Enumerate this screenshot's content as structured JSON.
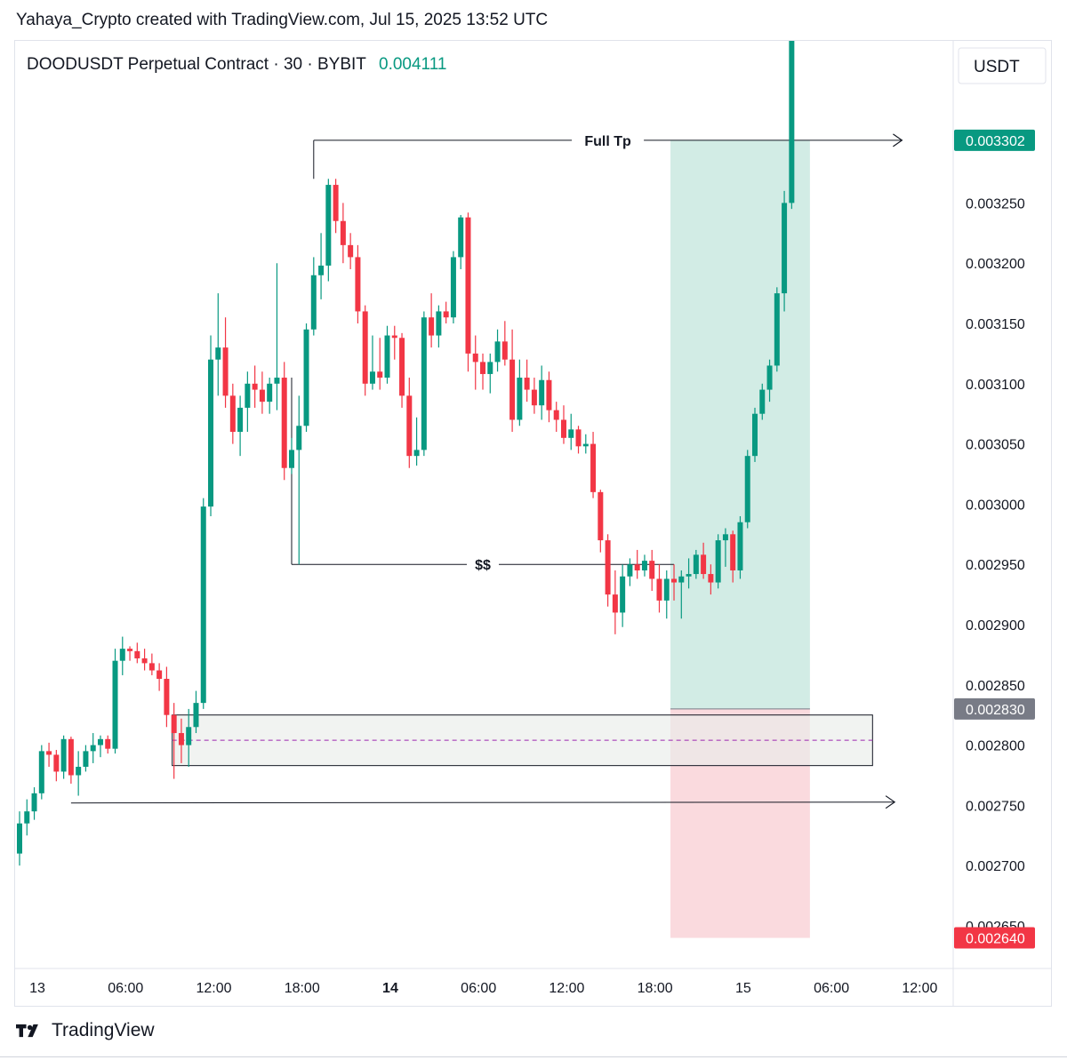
{
  "header": {
    "attribution": "Yahaya_Crypto created with TradingView.com, Jul 15, 2025 13:52 UTC"
  },
  "legend": {
    "symbol": "DOODUSDT Perpetual Contract · 30 · BYBIT",
    "last_price": "0.004111"
  },
  "axis": {
    "currency": "USDT"
  },
  "colors": {
    "up": "#089981",
    "down": "#f23645",
    "target_zone": "#cdeae2",
    "stop_zone": "#f9d6da",
    "range_box": "#e9ecea",
    "label_green": "#089981",
    "label_red": "#f23645",
    "label_gray": "#787b86"
  },
  "price_labels": {
    "target": "0.003302",
    "entry": "0.002830",
    "stop": "0.002640"
  },
  "footer": {
    "brand": "TradingView"
  },
  "chart_data": {
    "type": "candlestick",
    "x_unit": "30-minute bars from Jul 13 00:00",
    "ylim": [
      0.00262,
      0.00339
    ],
    "y_ticks": [
      "0.003250",
      "0.003200",
      "0.003150",
      "0.003100",
      "0.003050",
      "0.003000",
      "0.002950",
      "0.002900",
      "0.002850",
      "0.002800",
      "0.002750",
      "0.002700",
      "0.002650"
    ],
    "x_ticks": [
      {
        "label": "13",
        "bar": 0,
        "bold": false
      },
      {
        "label": "06:00",
        "bar": 12,
        "bold": false
      },
      {
        "label": "12:00",
        "bar": 24,
        "bold": false
      },
      {
        "label": "18:00",
        "bar": 36,
        "bold": false
      },
      {
        "label": "14",
        "bar": 48,
        "bold": true
      },
      {
        "label": "06:00",
        "bar": 60,
        "bold": false
      },
      {
        "label": "12:00",
        "bar": 72,
        "bold": false
      },
      {
        "label": "18:00",
        "bar": 84,
        "bold": false
      },
      {
        "label": "15",
        "bar": 96,
        "bold": false
      },
      {
        "label": "06:00",
        "bar": 108,
        "bold": false
      },
      {
        "label": "12:00",
        "bar": 120,
        "bold": false
      }
    ],
    "candles": [
      [
        0.00271,
        0.002745,
        0.0027,
        0.002735
      ],
      [
        0.002735,
        0.002755,
        0.002725,
        0.002745
      ],
      [
        0.002745,
        0.002765,
        0.002738,
        0.00276
      ],
      [
        0.00276,
        0.0028,
        0.002755,
        0.002795
      ],
      [
        0.002795,
        0.002802,
        0.002782,
        0.002792
      ],
      [
        0.002792,
        0.002796,
        0.00277,
        0.002778
      ],
      [
        0.002778,
        0.002808,
        0.002772,
        0.002805
      ],
      [
        0.002805,
        0.002807,
        0.002768,
        0.002775
      ],
      [
        0.002775,
        0.002795,
        0.002758,
        0.002782
      ],
      [
        0.002782,
        0.0028,
        0.002778,
        0.002795
      ],
      [
        0.002795,
        0.00281,
        0.002785,
        0.0028
      ],
      [
        0.0028,
        0.002808,
        0.00279,
        0.002805
      ],
      [
        0.002805,
        0.002808,
        0.002793,
        0.002797
      ],
      [
        0.002797,
        0.00288,
        0.002793,
        0.00287
      ],
      [
        0.00287,
        0.00289,
        0.002858,
        0.00288
      ],
      [
        0.00288,
        0.002882,
        0.00287,
        0.002878
      ],
      [
        0.002878,
        0.002885,
        0.002868,
        0.002872
      ],
      [
        0.002872,
        0.00288,
        0.002862,
        0.002868
      ],
      [
        0.002868,
        0.002876,
        0.002858,
        0.002862
      ],
      [
        0.002862,
        0.002868,
        0.002845,
        0.002855
      ],
      [
        0.002855,
        0.002865,
        0.002815,
        0.002825
      ],
      [
        0.002825,
        0.002835,
        0.002772,
        0.00281
      ],
      [
        0.00281,
        0.002822,
        0.002785,
        0.0028
      ],
      [
        0.0028,
        0.00283,
        0.002782,
        0.002815
      ],
      [
        0.002815,
        0.002845,
        0.00281,
        0.002835
      ],
      [
        0.002835,
        0.003005,
        0.00283,
        0.002998
      ],
      [
        0.002998,
        0.00314,
        0.00299,
        0.00312
      ],
      [
        0.00312,
        0.003175,
        0.00309,
        0.00313
      ],
      [
        0.00313,
        0.003155,
        0.00308,
        0.00309
      ],
      [
        0.00309,
        0.0031,
        0.00305,
        0.00306
      ],
      [
        0.00306,
        0.00309,
        0.00304,
        0.00308
      ],
      [
        0.00308,
        0.00311,
        0.00306,
        0.0031
      ],
      [
        0.0031,
        0.003115,
        0.00308,
        0.003095
      ],
      [
        0.003095,
        0.00311,
        0.003075,
        0.003085
      ],
      [
        0.003085,
        0.003105,
        0.003075,
        0.0031
      ],
      [
        0.0031,
        0.0032,
        0.003078,
        0.003105
      ],
      [
        0.003105,
        0.003118,
        0.00302,
        0.00303
      ],
      [
        0.00303,
        0.003055,
        0.003025,
        0.003045
      ],
      [
        0.003045,
        0.00309,
        0.00295,
        0.003065
      ],
      [
        0.003065,
        0.00315,
        0.00306,
        0.003145
      ],
      [
        0.003145,
        0.003205,
        0.00314,
        0.00319
      ],
      [
        0.00319,
        0.003225,
        0.00317,
        0.003198
      ],
      [
        0.003198,
        0.00327,
        0.003185,
        0.003265
      ],
      [
        0.003265,
        0.00327,
        0.003225,
        0.003235
      ],
      [
        0.003235,
        0.00325,
        0.0032,
        0.003215
      ],
      [
        0.003215,
        0.003225,
        0.003195,
        0.003205
      ],
      [
        0.003205,
        0.003215,
        0.00315,
        0.00316
      ],
      [
        0.00316,
        0.003165,
        0.00309,
        0.0031
      ],
      [
        0.0031,
        0.00314,
        0.003095,
        0.00311
      ],
      [
        0.00311,
        0.003138,
        0.003095,
        0.003105
      ],
      [
        0.003105,
        0.003148,
        0.0031,
        0.00314
      ],
      [
        0.00314,
        0.003148,
        0.00312,
        0.003138
      ],
      [
        0.003138,
        0.003142,
        0.00308,
        0.00309
      ],
      [
        0.00309,
        0.003105,
        0.00303,
        0.00304
      ],
      [
        0.00304,
        0.003072,
        0.003032,
        0.003045
      ],
      [
        0.003045,
        0.00316,
        0.00304,
        0.003155
      ],
      [
        0.003155,
        0.003175,
        0.00313,
        0.00314
      ],
      [
        0.00314,
        0.003165,
        0.00313,
        0.00316
      ],
      [
        0.00316,
        0.003168,
        0.00315,
        0.003155
      ],
      [
        0.003155,
        0.00321,
        0.00315,
        0.003205
      ],
      [
        0.003205,
        0.00324,
        0.003195,
        0.003238
      ],
      [
        0.003238,
        0.003242,
        0.00311,
        0.003125
      ],
      [
        0.003125,
        0.00314,
        0.003095,
        0.003118
      ],
      [
        0.003118,
        0.003125,
        0.003095,
        0.003108
      ],
      [
        0.003108,
        0.003125,
        0.003092,
        0.003118
      ],
      [
        0.003118,
        0.003145,
        0.00311,
        0.003135
      ],
      [
        0.003135,
        0.003152,
        0.003115,
        0.00312
      ],
      [
        0.00312,
        0.003145,
        0.00306,
        0.00307
      ],
      [
        0.00307,
        0.00312,
        0.003065,
        0.003105
      ],
      [
        0.003105,
        0.00312,
        0.003085,
        0.003095
      ],
      [
        0.003095,
        0.003105,
        0.003075,
        0.003082
      ],
      [
        0.003082,
        0.003115,
        0.00307,
        0.003103
      ],
      [
        0.003103,
        0.00311,
        0.003068,
        0.003078
      ],
      [
        0.003078,
        0.003085,
        0.00306,
        0.00307
      ],
      [
        0.00307,
        0.003082,
        0.00305,
        0.003055
      ],
      [
        0.003055,
        0.003075,
        0.003045,
        0.003062
      ],
      [
        0.003062,
        0.003065,
        0.003042,
        0.003048
      ],
      [
        0.003048,
        0.003058,
        0.003042,
        0.00305
      ],
      [
        0.00305,
        0.00306,
        0.003005,
        0.00301
      ],
      [
        0.00301,
        0.003012,
        0.00296,
        0.00297
      ],
      [
        0.00297,
        0.002975,
        0.002915,
        0.002925
      ],
      [
        0.002925,
        0.002945,
        0.002892,
        0.00291
      ],
      [
        0.00291,
        0.00295,
        0.002898,
        0.00294
      ],
      [
        0.00294,
        0.002955,
        0.002932,
        0.00295
      ],
      [
        0.00295,
        0.002962,
        0.002938,
        0.002945
      ],
      [
        0.002945,
        0.002958,
        0.00294,
        0.002953
      ],
      [
        0.002953,
        0.002962,
        0.002928,
        0.002938
      ],
      [
        0.002938,
        0.00295,
        0.00291,
        0.00292
      ],
      [
        0.00292,
        0.002945,
        0.002905,
        0.002938
      ],
      [
        0.002938,
        0.00295,
        0.00292,
        0.002935
      ],
      [
        0.002935,
        0.002945,
        0.002905,
        0.00294
      ],
      [
        0.00294,
        0.002955,
        0.00293,
        0.002942
      ],
      [
        0.002942,
        0.002962,
        0.002938,
        0.002958
      ],
      [
        0.002958,
        0.002968,
        0.002938,
        0.002942
      ],
      [
        0.002942,
        0.00295,
        0.002925,
        0.002935
      ],
      [
        0.002935,
        0.002975,
        0.00293,
        0.00297
      ],
      [
        0.00297,
        0.00298,
        0.002948,
        0.002975
      ],
      [
        0.002975,
        0.002978,
        0.002935,
        0.002945
      ],
      [
        0.002945,
        0.00299,
        0.002938,
        0.002985
      ],
      [
        0.002985,
        0.003045,
        0.00298,
        0.00304
      ],
      [
        0.00304,
        0.00308,
        0.003035,
        0.003075
      ],
      [
        0.003075,
        0.0031,
        0.00307,
        0.003095
      ],
      [
        0.003095,
        0.00312,
        0.003085,
        0.003115
      ],
      [
        0.003115,
        0.00318,
        0.00311,
        0.003175
      ],
      [
        0.003175,
        0.00326,
        0.00316,
        0.00325
      ],
      [
        0.00325,
        0.0034,
        0.003245,
        0.00339
      ]
    ],
    "annotations": [
      {
        "type": "level_line",
        "label": "Full Tp",
        "price": 0.003302,
        "from_bar": 40,
        "to_bar": 120
      },
      {
        "type": "level_line",
        "label": "$$",
        "price": 0.00295,
        "from_bar": 37,
        "to_bar": 89
      },
      {
        "type": "arrow_line",
        "price": 0.002752,
        "from_bar": 7,
        "to_bar": 119
      },
      {
        "type": "range_box",
        "top": 0.002825,
        "bottom": 0.002783,
        "mid": 0.002804,
        "from_bar": 21,
        "to_bar": 116
      },
      {
        "type": "long_position",
        "entry": 0.00283,
        "target": 0.003302,
        "stop": 0.00264,
        "from_bar": 89,
        "to_bar": 107
      }
    ]
  }
}
